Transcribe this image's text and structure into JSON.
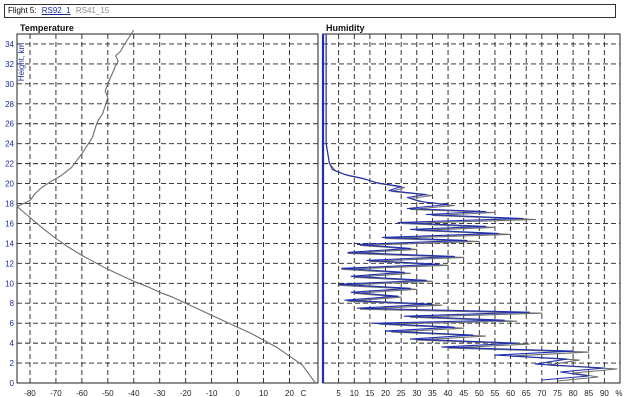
{
  "header": {
    "label": "Flight 5:",
    "tabs": [
      {
        "label": "RS92_1",
        "active": true
      },
      {
        "label": "RS41_15",
        "active": false
      }
    ]
  },
  "colors": {
    "series_1": "#1f2fb0",
    "series_2": "#6e6e6e",
    "height_axis": "#1f2fb0",
    "grid": "#222222"
  },
  "chart_data": [
    {
      "type": "line",
      "title": "Temperature",
      "ylabel": "Height, km",
      "x_ticks": [
        -80,
        -70,
        -60,
        -50,
        -40,
        -30,
        -20,
        -10,
        0,
        10,
        20
      ],
      "x_unit_label": "C",
      "xlim": [
        -85,
        31
      ],
      "y_ticks": [
        0,
        2,
        4,
        6,
        8,
        10,
        12,
        14,
        16,
        18,
        20,
        22,
        24,
        26,
        28,
        30,
        32,
        34
      ],
      "ylim": [
        0,
        35
      ],
      "grid": true,
      "series": [
        {
          "x": [
            30,
            25,
            20,
            15,
            10,
            5,
            0,
            -5,
            -10,
            -15,
            -20,
            -25,
            -30,
            -35,
            -40,
            -45,
            -50,
            -55,
            -60,
            -65,
            -70,
            -75,
            -80,
            -85,
            -80,
            -78,
            -76,
            -72,
            -68,
            -64,
            -62,
            -60,
            -58,
            -56,
            -55,
            -54,
            -52,
            -51,
            -50,
            -51,
            -50,
            -49,
            -48,
            -47,
            -46,
            -47,
            -45,
            -44,
            -43,
            -42,
            -41,
            -40
          ],
          "y": [
            0,
            1.8,
            2.7,
            3.6,
            4.3,
            5.0,
            5.6,
            6.2,
            6.8,
            7.4,
            8.0,
            8.6,
            9.1,
            9.7,
            10.2,
            10.8,
            11.4,
            12.1,
            12.8,
            13.6,
            14.5,
            15.5,
            16.6,
            17.7,
            18.3,
            19.0,
            19.5,
            20.2,
            20.8,
            21.6,
            22.3,
            23.0,
            23.8,
            24.6,
            25.4,
            26.2,
            27.0,
            27.8,
            28.6,
            29.3,
            30.0,
            30.6,
            31.2,
            31.8,
            32.3,
            32.8,
            33.3,
            33.8,
            34.2,
            34.6,
            35.0,
            35.4
          ]
        }
      ]
    },
    {
      "type": "line",
      "title": "Humidity",
      "x_ticks": [
        5,
        10,
        15,
        20,
        25,
        30,
        35,
        40,
        45,
        50,
        55,
        60,
        65,
        70,
        75,
        80,
        85,
        90
      ],
      "x_unit_label": "%",
      "xlim": [
        0,
        95
      ],
      "y_ticks": [
        0,
        2,
        4,
        6,
        8,
        10,
        12,
        14,
        16,
        18,
        20,
        22,
        24,
        26,
        28,
        30,
        32,
        34
      ],
      "ylim": [
        0,
        35
      ],
      "grid": true,
      "series": [
        {
          "x": [
            75,
            88,
            80,
            94,
            72,
            82,
            60,
            85,
            40,
            66,
            30,
            52,
            22,
            45,
            18,
            62,
            28,
            70,
            12,
            38,
            8,
            25,
            10,
            30,
            5,
            35,
            10,
            28,
            6,
            40,
            15,
            45,
            8,
            30,
            12,
            50,
            20,
            60,
            30,
            55,
            25,
            68,
            35,
            55,
            28,
            42,
            33,
            28,
            35,
            22,
            26,
            18,
            14,
            8,
            4,
            2,
            1,
            1,
            1,
            1
          ],
          "y": [
            0.2,
            0.6,
            1.0,
            1.4,
            1.8,
            2.3,
            2.7,
            3.1,
            3.5,
            3.9,
            4.3,
            4.7,
            5.1,
            5.5,
            5.9,
            6.2,
            6.6,
            7.0,
            7.4,
            7.8,
            8.2,
            8.6,
            9.0,
            9.4,
            9.8,
            10.2,
            10.6,
            11.0,
            11.4,
            11.8,
            12.2,
            12.6,
            13.0,
            13.4,
            13.8,
            14.2,
            14.5,
            14.9,
            15.3,
            15.6,
            16.0,
            16.4,
            16.8,
            17.1,
            17.4,
            17.8,
            18.1,
            18.5,
            18.8,
            19.2,
            19.6,
            20.0,
            20.4,
            20.8,
            21.3,
            22.0,
            24.0,
            27.0,
            31.0,
            35.0
          ]
        },
        {
          "x": [
            70,
            85,
            76,
            90,
            68,
            78,
            55,
            80,
            38,
            62,
            28,
            48,
            20,
            42,
            16,
            58,
            26,
            66,
            11,
            35,
            7,
            24,
            9,
            28,
            5,
            33,
            9,
            26,
            6,
            37,
            14,
            42,
            8,
            28,
            11,
            46,
            19,
            56,
            28,
            52,
            24,
            64,
            33,
            52,
            27,
            40,
            31,
            27,
            33,
            21,
            25,
            17,
            13,
            7,
            3,
            2,
            1,
            1,
            1,
            1
          ],
          "y": [
            0.3,
            0.7,
            1.1,
            1.5,
            1.9,
            2.4,
            2.8,
            3.2,
            3.6,
            4.0,
            4.4,
            4.8,
            5.2,
            5.6,
            6.0,
            6.3,
            6.7,
            7.1,
            7.5,
            7.9,
            8.3,
            8.7,
            9.1,
            9.5,
            9.9,
            10.3,
            10.7,
            11.1,
            11.5,
            11.9,
            12.3,
            12.7,
            13.1,
            13.5,
            13.9,
            14.3,
            14.6,
            15.0,
            15.4,
            15.7,
            16.1,
            16.5,
            16.9,
            17.2,
            17.5,
            17.9,
            18.2,
            18.6,
            18.9,
            19.3,
            19.7,
            20.1,
            20.5,
            20.9,
            21.4,
            22.1,
            24.1,
            27.1,
            31.1,
            35.0
          ]
        }
      ]
    }
  ]
}
